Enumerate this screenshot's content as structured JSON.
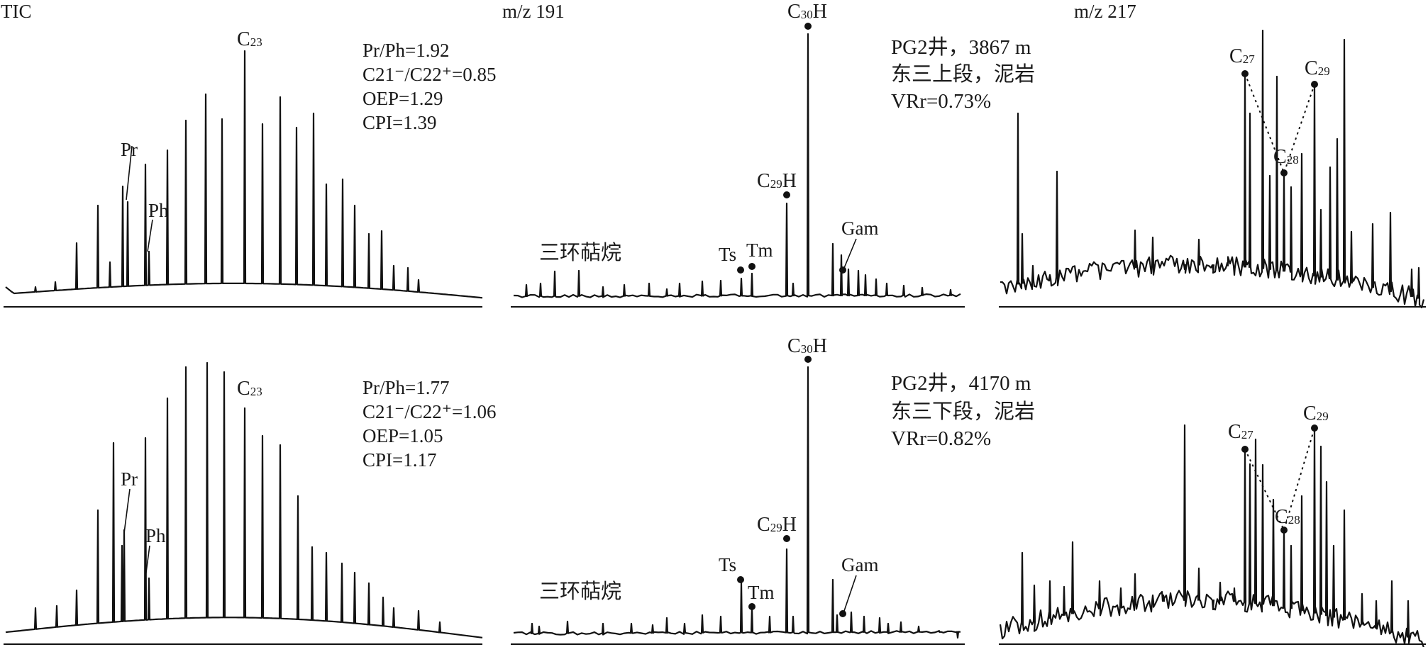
{
  "chart_data": [
    {
      "type": "line",
      "title": "TIC",
      "peak_labels": [
        "Pr",
        "Ph",
        "C23"
      ],
      "parameters": [
        "Pr/Ph=1.92",
        "C21⁻/C22⁺=0.85",
        "OEP=1.29",
        "CPI=1.39"
      ]
    },
    {
      "type": "line",
      "title": "m/z 191",
      "group_label": "三环萜烷",
      "peak_labels": [
        "Ts",
        "Tm",
        "C29H",
        "C30H",
        "Gam"
      ],
      "sample_info": [
        "PG2井，3867 m",
        "东三上段，泥岩",
        "VRr=0.73%"
      ]
    },
    {
      "type": "line",
      "title": "m/z 217",
      "peak_labels": [
        "C27",
        "C28",
        "C29"
      ]
    },
    {
      "type": "line",
      "title": "",
      "peak_labels": [
        "Pr",
        "Ph",
        "C23"
      ],
      "parameters": [
        "Pr/Ph=1.77",
        "C21⁻/C22⁺=1.06",
        "OEP=1.05",
        "CPI=1.17"
      ]
    },
    {
      "type": "line",
      "title": "",
      "group_label": "三环萜烷",
      "peak_labels": [
        "Ts",
        "Tm",
        "C29H",
        "C30H",
        "Gam"
      ],
      "sample_info": [
        "PG2井，4170 m",
        "东三下段，泥岩",
        "VRr=0.82%"
      ]
    },
    {
      "type": "line",
      "title": "",
      "peak_labels": [
        "C27",
        "C28",
        "C29"
      ]
    }
  ]
}
